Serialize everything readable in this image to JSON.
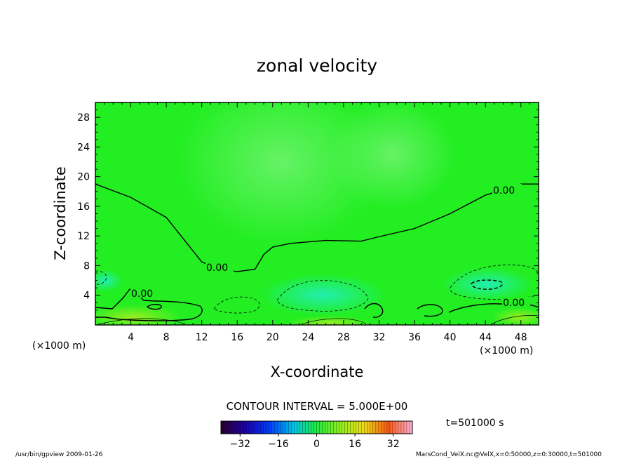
{
  "chart_data": {
    "type": "heatmap",
    "title": "zonal velocity",
    "xlabel": "X-coordinate",
    "ylabel": "Z-coordinate",
    "x_unit_label": "(×1000 m)",
    "y_unit_label": "(×1000 m)",
    "xlim": [
      0,
      50
    ],
    "ylim": [
      0,
      30
    ],
    "x_ticks": [
      4,
      8,
      12,
      16,
      20,
      24,
      28,
      32,
      36,
      40,
      44,
      48
    ],
    "y_ticks": [
      4,
      8,
      12,
      16,
      20,
      24,
      28
    ],
    "contour_interval_label": "CONTOUR INTERVAL = 5.000E+00",
    "zero_contour_labels": [
      "0.00",
      "0.00",
      "0.00",
      "0.00"
    ],
    "colorbar": {
      "min": -40,
      "max": 40,
      "ticks": [
        -32,
        -16,
        0,
        16,
        32
      ]
    },
    "zero_contour_line": [
      [
        0,
        19
      ],
      [
        4,
        17.2
      ],
      [
        8,
        14.5
      ],
      [
        10,
        11.5
      ],
      [
        12,
        8.5
      ],
      [
        14,
        7.5
      ],
      [
        16,
        7.2
      ],
      [
        18,
        7.5
      ],
      [
        19,
        9.5
      ],
      [
        20,
        10.5
      ],
      [
        22,
        11
      ],
      [
        26,
        11.4
      ],
      [
        30,
        11.3
      ],
      [
        32,
        11.9
      ],
      [
        36,
        13
      ],
      [
        40,
        15
      ],
      [
        44,
        17.5
      ],
      [
        48,
        19
      ],
      [
        50,
        19
      ]
    ],
    "time_label": "t=501000 s"
  },
  "footer": {
    "left": "/usr/bin/gpview   2009-01-26",
    "right": "MarsCond_VelX.nc@VelX,x=0:50000,z=0:30000,t=501000"
  },
  "colors": {
    "field_main": "#22ee22",
    "field_light": "#55f055",
    "field_cyan": "#22eeaa",
    "field_yellow": "#88ee22"
  }
}
